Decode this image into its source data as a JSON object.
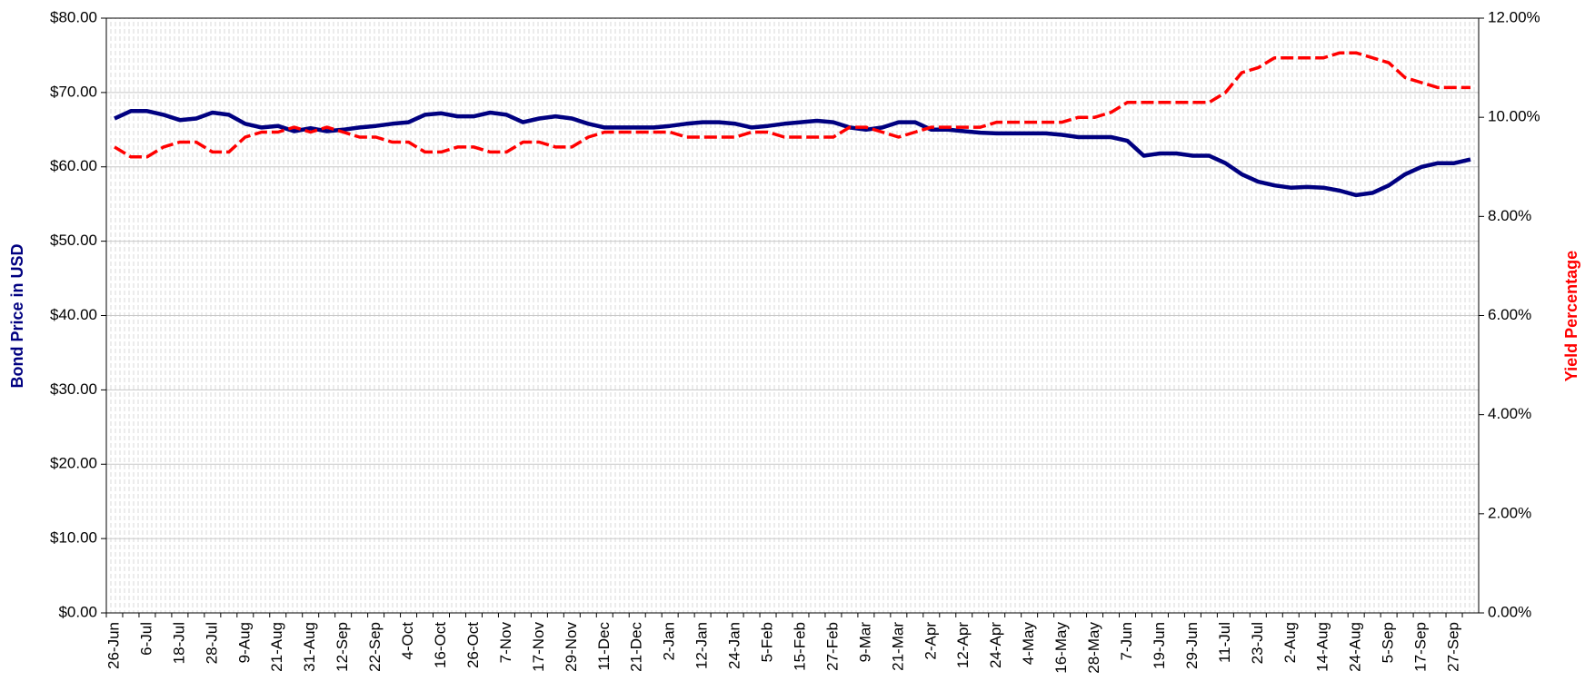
{
  "chart_data": {
    "type": "line",
    "categories": [
      "26-Jun",
      null,
      "6-Jul",
      null,
      "18-Jul",
      null,
      "28-Jul",
      null,
      "9-Aug",
      null,
      "21-Aug",
      null,
      "31-Aug",
      null,
      "12-Sep",
      null,
      "22-Sep",
      null,
      "4-Oct",
      null,
      "16-Oct",
      null,
      "26-Oct",
      null,
      "7-Nov",
      null,
      "17-Nov",
      null,
      "29-Nov",
      null,
      "11-Dec",
      null,
      "21-Dec",
      null,
      "2-Jan",
      null,
      "12-Jan",
      null,
      "24-Jan",
      null,
      "5-Feb",
      null,
      "15-Feb",
      null,
      "27-Feb",
      null,
      "9-Mar",
      null,
      "21-Mar",
      null,
      "2-Apr",
      null,
      "12-Apr",
      null,
      "24-Apr",
      null,
      "4-May",
      null,
      "16-May",
      null,
      "28-May",
      null,
      "7-Jun",
      null,
      "19-Jun",
      null,
      "29-Jun",
      null,
      "11-Jul",
      null,
      "23-Jul",
      null,
      "2-Aug",
      null,
      "14-Aug",
      null,
      "24-Aug",
      null,
      "5-Sep",
      null,
      "17-Sep",
      null,
      "27-Sep",
      null
    ],
    "series": [
      {
        "color": "#000080",
        "values": [
          66.5,
          67.5,
          67.5,
          67,
          66.3,
          66.5,
          67.3,
          67,
          65.8,
          65.3,
          65.5,
          64.8,
          65.2,
          64.8,
          65,
          65.3,
          65.5,
          65.8,
          66,
          67,
          67.2,
          66.8,
          66.8,
          67.3,
          67,
          66,
          66.5,
          66.8,
          66.5,
          65.8,
          65.3,
          65.3,
          65.3,
          65.3,
          65.5,
          65.8,
          66,
          66,
          65.8,
          65.3,
          65.5,
          65.8,
          66,
          66.2,
          66,
          65.3,
          65,
          65.3,
          66,
          66,
          65,
          65,
          64.8,
          64.6,
          64.5,
          64.5,
          64.5,
          64.5,
          64.3,
          64,
          64,
          64,
          63.5,
          61.5,
          61.8,
          61.8,
          61.5,
          61.5,
          60.5,
          59,
          58,
          57.5,
          57.2,
          57.3,
          57.2,
          56.8,
          56.2,
          56.5,
          57.5,
          59,
          60,
          60.5,
          60.5,
          61
        ]
      },
      {
        "color": "#ff0000",
        "axis": "y2",
        "values": [
          9.4,
          9.2,
          9.2,
          9.4,
          9.5,
          9.5,
          9.3,
          9.3,
          9.6,
          9.7,
          9.7,
          9.8,
          9.7,
          9.8,
          9.7,
          9.6,
          9.6,
          9.5,
          9.5,
          9.3,
          9.3,
          9.4,
          9.4,
          9.3,
          9.3,
          9.5,
          9.5,
          9.4,
          9.4,
          9.6,
          9.7,
          9.7,
          9.7,
          9.7,
          9.7,
          9.6,
          9.6,
          9.6,
          9.6,
          9.7,
          9.7,
          9.6,
          9.6,
          9.6,
          9.6,
          9.8,
          9.8,
          9.7,
          9.6,
          9.7,
          9.8,
          9.8,
          9.8,
          9.8,
          9.9,
          9.9,
          9.9,
          9.9,
          9.9,
          10,
          10,
          10.1,
          10.3,
          10.3,
          10.3,
          10.3,
          10.3,
          10.3,
          10.5,
          10.9,
          11,
          11.2,
          11.2,
          11.2,
          11.2,
          11.3,
          11.3,
          11.2,
          11.1,
          10.8,
          10.7,
          10.6,
          10.6,
          10.6
        ]
      }
    ],
    "y_label": "Bond Price in USD",
    "y2_label": "Yield Percentage",
    "ylim": [
      0,
      80
    ],
    "yticks": [
      {
        "value": 0,
        "label": "$0.00"
      },
      {
        "value": 10,
        "label": "$10.00"
      },
      {
        "value": 20,
        "label": "$20.00"
      },
      {
        "value": 30,
        "label": "$30.00"
      },
      {
        "value": 40,
        "label": "$40.00"
      },
      {
        "value": 50,
        "label": "$50.00"
      },
      {
        "value": 60,
        "label": "$60.00"
      },
      {
        "value": 70,
        "label": "$70.00"
      },
      {
        "value": 80,
        "label": "$80.00"
      }
    ],
    "y2lim": [
      0,
      12
    ],
    "y2ticks": [
      {
        "value": 0,
        "label": "0.00%"
      },
      {
        "value": 2,
        "label": "2.00%"
      },
      {
        "value": 4,
        "label": "4.00%"
      },
      {
        "value": 6,
        "label": "6.00%"
      },
      {
        "value": 8,
        "label": "8.00%"
      },
      {
        "value": 10,
        "label": "10.00%"
      },
      {
        "value": 12,
        "label": "12.00%"
      }
    ],
    "grid": true
  }
}
